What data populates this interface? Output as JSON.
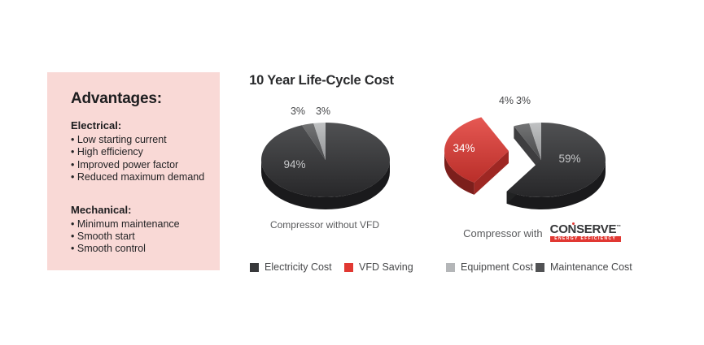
{
  "panel": {
    "title": "Advantages:",
    "sections": [
      {
        "heading": "Electrical:",
        "items": [
          "Low starting current",
          "High efficiency",
          "Improved power factor",
          "Reduced maximum demand"
        ]
      },
      {
        "heading": "Mechanical:",
        "items": [
          "Minimum maintenance",
          "Smooth start",
          "Smooth control"
        ]
      }
    ]
  },
  "chart_title": "10 Year Life-Cycle Cost",
  "chart_data": [
    {
      "type": "pie",
      "name": "Compressor without VFD",
      "slices": [
        {
          "label": "Electricity Cost",
          "value": 94,
          "color": "#2f3032"
        },
        {
          "label": "Maintenance Cost",
          "value": 3,
          "color": "#58595b"
        },
        {
          "label": "Equipment Cost",
          "value": 3,
          "color": "#b4b6b8"
        }
      ],
      "exploded_slice": null
    },
    {
      "type": "pie",
      "name": "Compressor with CONSERVE",
      "slices": [
        {
          "label": "Electricity Cost",
          "value": 59,
          "color": "#2f3032"
        },
        {
          "label": "VFD Saving",
          "value": 34,
          "color": "#e13832"
        },
        {
          "label": "Maintenance Cost",
          "value": 4,
          "color": "#58595b"
        },
        {
          "label": "Equipment Cost",
          "value": 3,
          "color": "#b4b6b8"
        }
      ],
      "exploded_slice": "VFD Saving"
    }
  ],
  "captions": {
    "pie2_prefix": "Compressor with"
  },
  "brand": {
    "name": "CONSERVE",
    "tm": "™",
    "tagline": "ENERGY EFFICIENCY",
    "color": "#e13832"
  },
  "legend": [
    {
      "label": "Electricity Cost",
      "color": "#38393b"
    },
    {
      "label": "VFD Saving",
      "color": "#e13832"
    },
    {
      "label": "Equipment Cost",
      "color": "#b4b6b8"
    },
    {
      "label": "Maintenance Cost",
      "color": "#515254"
    }
  ],
  "colors": {
    "panel_bg": "#f9d9d6",
    "text_dark": "#2a2b2d",
    "text_gray": "#5a5b5d",
    "background": "#ffffff"
  }
}
